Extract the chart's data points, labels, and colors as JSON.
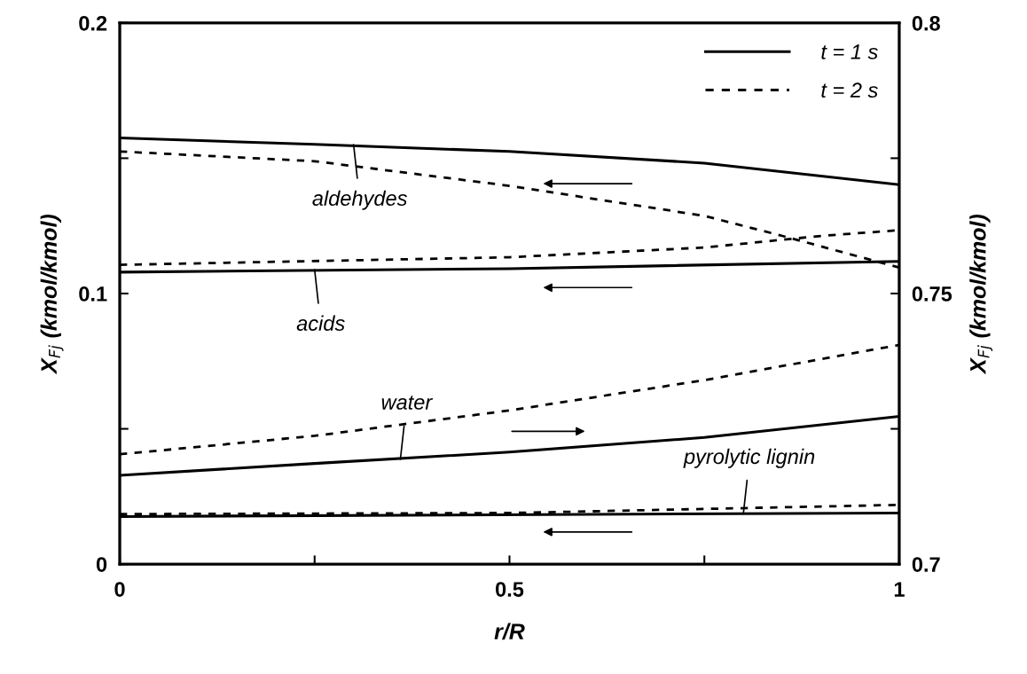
{
  "chart_data": {
    "type": "line",
    "xlabel": "r/R",
    "ylabel": "X$_{Fj}$ (kmol/kmol)",
    "y2label": "X$_{Fj}$ (kmol/kmol)",
    "xlim": [
      0,
      1
    ],
    "xticks": [
      0,
      {
        "value": 0.25,
        "label": null
      },
      0.5,
      {
        "value": 0.75,
        "label": null
      },
      1
    ],
    "ylim": [
      0,
      0.2
    ],
    "yticks": [
      0,
      {
        "value": 0.05,
        "label": null
      },
      0.1,
      {
        "value": 0.15,
        "label": null
      },
      0.2
    ],
    "y2lim": [
      0.7,
      0.8
    ],
    "y2ticks": [
      0.7,
      {
        "value": 0.725,
        "label": null
      },
      0.75,
      {
        "value": 0.775,
        "label": null
      },
      0.8
    ],
    "legend": "top right",
    "grid": false,
    "marker": "none",
    "series": [
      {
        "name": "t = 1 s",
        "color": "#000000",
        "line_style": "solid",
        "x": [
          0,
          0.25,
          0.5,
          0.75,
          1
        ],
        "values": [
          0.1575,
          0.1551,
          0.1525,
          0.1482,
          0.1402
        ]
      },
      {
        "name": "t = 2 s",
        "color": "#000000",
        "line_style": "dashed",
        "x": [
          0,
          0.25,
          0.5,
          0.75,
          0.85,
          1
        ],
        "values": [
          0.1525,
          0.1489,
          0.1398,
          0.1287,
          0.1213,
          0.1096
        ]
      },
      {
        "color": "#000000",
        "line_style": "solid",
        "x": [
          0,
          0.5,
          1
        ],
        "values": [
          0.1079,
          0.1092,
          0.1119
        ]
      },
      {
        "color": "#000000",
        "line_style": "dashed",
        "x": [
          0,
          0.5,
          0.75,
          0.9,
          1
        ],
        "values": [
          0.1106,
          0.1134,
          0.117,
          0.1213,
          0.1234
        ]
      },
      {
        "color": "#000000",
        "line_style": "solid",
        "axis": "y2",
        "x": [
          0,
          0.25,
          0.5,
          0.75,
          1
        ],
        "values": [
          0.7164,
          0.7186,
          0.7207,
          0.7234,
          0.7273
        ]
      },
      {
        "color": "#000000",
        "line_style": "dashed",
        "axis": "y2",
        "x": [
          0,
          0.25,
          0.5,
          0.75,
          1
        ],
        "values": [
          0.7203,
          0.7237,
          0.7284,
          0.734,
          0.7405
        ]
      },
      {
        "color": "#000000",
        "line_style": "solid",
        "x": [
          0,
          1
        ],
        "values": [
          0.0176,
          0.0189
        ]
      },
      {
        "color": "#000000",
        "line_style": "dashed",
        "x": [
          0,
          0.5,
          0.75,
          1
        ],
        "values": [
          0.0185,
          0.0189,
          0.0204,
          0.0219
        ]
      }
    ],
    "annotations": [
      {
        "text": "aldehydes",
        "x": 0.3,
        "y": 0.155
      },
      {
        "text": "acids",
        "x": 0.25,
        "y": 0.1088
      },
      {
        "text": "water",
        "x": 0.36,
        "y": 0.0387
      },
      {
        "text": "pyrolytic lignin",
        "x": 0.8,
        "y": 0.0186
      }
    ]
  }
}
